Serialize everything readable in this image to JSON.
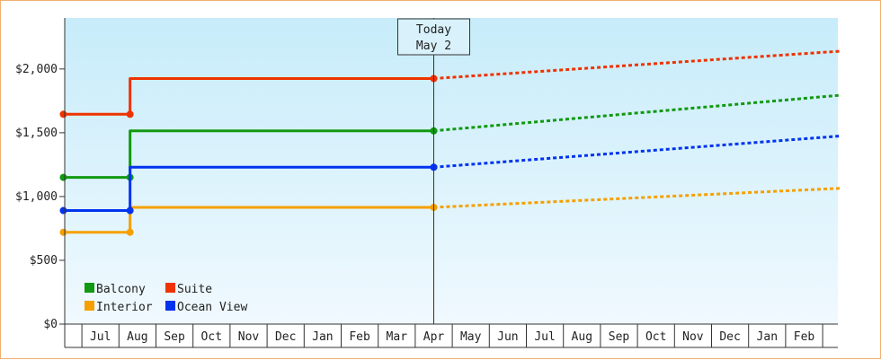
{
  "chart_data": {
    "type": "line",
    "title": "",
    "xlabel": "",
    "ylabel": "",
    "ylim": [
      0,
      2400
    ],
    "yticks": [
      {
        "value": 0,
        "label": "$0"
      },
      {
        "value": 500,
        "label": "$500"
      },
      {
        "value": 1000,
        "label": "$1,000"
      },
      {
        "value": 1500,
        "label": "$1,500"
      },
      {
        "value": 2000,
        "label": "$2,000"
      }
    ],
    "months": [
      "Jul",
      "Aug",
      "Sep",
      "Oct",
      "Nov",
      "Dec",
      "Jan",
      "Feb",
      "Mar",
      "Apr",
      "May",
      "Jun",
      "Jul",
      "Aug",
      "Sep",
      "Oct",
      "Nov",
      "Dec",
      "Jan",
      "Feb"
    ],
    "today": {
      "line1": "Today",
      "line2": "May 2",
      "x": 10.0
    },
    "grid": false,
    "legend_position": "bottom-left",
    "series": [
      {
        "name": "Balcony",
        "color": "#119911",
        "history": [
          [
            0,
            1150
          ],
          [
            1.8,
            1150
          ],
          [
            1.8,
            1515
          ],
          [
            10.0,
            1515
          ]
        ],
        "forecast": [
          [
            10.0,
            1515
          ],
          [
            21.0,
            1795
          ]
        ]
      },
      {
        "name": "Suite",
        "color": "#ee3300",
        "history": [
          [
            0,
            1645
          ],
          [
            1.8,
            1645
          ],
          [
            1.8,
            1925
          ],
          [
            10.0,
            1925
          ]
        ],
        "forecast": [
          [
            10.0,
            1925
          ],
          [
            21.0,
            2140
          ]
        ]
      },
      {
        "name": "Interior",
        "color": "#f5a000",
        "history": [
          [
            0,
            720
          ],
          [
            1.8,
            720
          ],
          [
            1.8,
            915
          ],
          [
            10.0,
            915
          ]
        ],
        "forecast": [
          [
            10.0,
            915
          ],
          [
            21.0,
            1065
          ]
        ]
      },
      {
        "name": "Ocean View",
        "color": "#0033ee",
        "history": [
          [
            0,
            890
          ],
          [
            1.8,
            890
          ],
          [
            1.8,
            1230
          ],
          [
            10.0,
            1230
          ]
        ],
        "forecast": [
          [
            10.0,
            1230
          ],
          [
            21.0,
            1475
          ]
        ]
      }
    ]
  }
}
